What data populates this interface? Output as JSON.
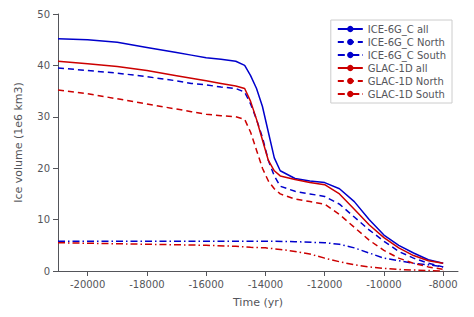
{
  "chart_data": {
    "type": "line",
    "x_label": "Time (yr)",
    "y_label": "Ice volume (1e6 km3)",
    "xlim": [
      -21000,
      -7500
    ],
    "ylim": [
      0,
      50
    ],
    "xticks": [
      -20000,
      -18000,
      -16000,
      -14000,
      -12000,
      -10000,
      -8000
    ],
    "yticks": [
      0,
      10,
      20,
      30,
      40,
      50
    ],
    "legend": "upper right",
    "grid": false,
    "series": [
      {
        "name": "ICE-6G_C all",
        "color": "#0000cc",
        "line_style": "solid",
        "x": [
          -21000,
          -20000,
          -19000,
          -18000,
          -17000,
          -16500,
          -16000,
          -15500,
          -15000,
          -14700,
          -14500,
          -14300,
          -14100,
          -13900,
          -13700,
          -13500,
          -13000,
          -12500,
          -12000,
          -11500,
          -11000,
          -10500,
          -10000,
          -9500,
          -9000,
          -8500,
          -8000
        ],
        "values": [
          45.2,
          45.0,
          44.5,
          43.5,
          42.5,
          42.0,
          41.5,
          41.2,
          40.8,
          40.0,
          38.0,
          35.5,
          32.0,
          27.0,
          22.0,
          19.5,
          18.0,
          17.5,
          17.2,
          16.0,
          13.5,
          10.0,
          7.0,
          5.0,
          3.5,
          2.2,
          1.5
        ]
      },
      {
        "name": "ICE-6G_C North",
        "color": "#0000cc",
        "line_style": "dashed",
        "x": [
          -21000,
          -20000,
          -19000,
          -18000,
          -17000,
          -16500,
          -16000,
          -15500,
          -15000,
          -14700,
          -14500,
          -14300,
          -14100,
          -13900,
          -13700,
          -13500,
          -13000,
          -12500,
          -12000,
          -11500,
          -11000,
          -10500,
          -10000,
          -9500,
          -9000,
          -8500,
          -8000
        ],
        "values": [
          39.5,
          39.0,
          38.5,
          37.8,
          37.0,
          36.5,
          36.2,
          35.8,
          35.5,
          34.8,
          32.5,
          29.5,
          26.0,
          21.5,
          18.5,
          16.5,
          15.5,
          15.0,
          14.5,
          13.0,
          10.5,
          8.0,
          5.8,
          3.8,
          2.5,
          1.5,
          0.8
        ]
      },
      {
        "name": "ICE-6G_C South",
        "color": "#0000cc",
        "line_style": "dashdot",
        "x": [
          -21000,
          -20000,
          -19000,
          -18000,
          -17000,
          -16000,
          -15000,
          -14000,
          -13000,
          -12000,
          -11500,
          -11000,
          -10500,
          -10000,
          -9500,
          -9000,
          -8500,
          -8000
        ],
        "values": [
          5.8,
          5.8,
          5.8,
          5.8,
          5.8,
          5.8,
          5.8,
          5.8,
          5.7,
          5.5,
          5.2,
          4.5,
          3.5,
          2.5,
          2.0,
          1.5,
          1.2,
          0.8
        ]
      },
      {
        "name": "GLAC-1D all",
        "color": "#cc0000",
        "line_style": "solid",
        "x": [
          -21000,
          -20000,
          -19000,
          -18000,
          -17000,
          -16500,
          -16000,
          -15500,
          -15000,
          -14700,
          -14500,
          -14300,
          -14100,
          -13900,
          -13700,
          -13500,
          -13000,
          -12500,
          -12000,
          -11500,
          -11000,
          -10500,
          -10000,
          -9500,
          -9000,
          -8500,
          -8000
        ],
        "values": [
          40.8,
          40.3,
          39.8,
          39.0,
          38.0,
          37.5,
          37.0,
          36.5,
          36.0,
          35.5,
          33.0,
          29.5,
          25.5,
          21.5,
          19.5,
          18.5,
          17.8,
          17.2,
          16.8,
          15.0,
          12.0,
          9.0,
          6.5,
          4.5,
          3.0,
          2.0,
          1.5
        ]
      },
      {
        "name": "GLAC-1D North",
        "color": "#cc0000",
        "line_style": "dashed",
        "x": [
          -21000,
          -20000,
          -19000,
          -18000,
          -17000,
          -16500,
          -16000,
          -15500,
          -15000,
          -14700,
          -14500,
          -14300,
          -14100,
          -13900,
          -13700,
          -13500,
          -13000,
          -12500,
          -12000,
          -11500,
          -11000,
          -10500,
          -10000,
          -9500,
          -9000,
          -8500,
          -8000
        ],
        "values": [
          35.2,
          34.5,
          33.5,
          32.5,
          31.5,
          31.0,
          30.5,
          30.2,
          30.0,
          29.5,
          27.0,
          23.5,
          20.0,
          17.5,
          16.0,
          15.0,
          14.0,
          13.5,
          13.0,
          11.0,
          8.5,
          6.0,
          4.0,
          2.5,
          1.5,
          0.8,
          0.3
        ]
      },
      {
        "name": "GLAC-1D South",
        "color": "#cc0000",
        "line_style": "dashdot",
        "x": [
          -21000,
          -20000,
          -19000,
          -18000,
          -17000,
          -16000,
          -15000,
          -14500,
          -14000,
          -13500,
          -13000,
          -12500,
          -12000,
          -11500,
          -11000,
          -10500,
          -10000,
          -9500,
          -9000,
          -8500,
          -8000
        ],
        "values": [
          5.5,
          5.4,
          5.3,
          5.2,
          5.1,
          5.0,
          4.8,
          4.6,
          4.5,
          4.2,
          3.8,
          3.3,
          2.5,
          1.8,
          1.2,
          0.8,
          0.5,
          0.3,
          0.2,
          0.1,
          0.0
        ]
      }
    ]
  }
}
